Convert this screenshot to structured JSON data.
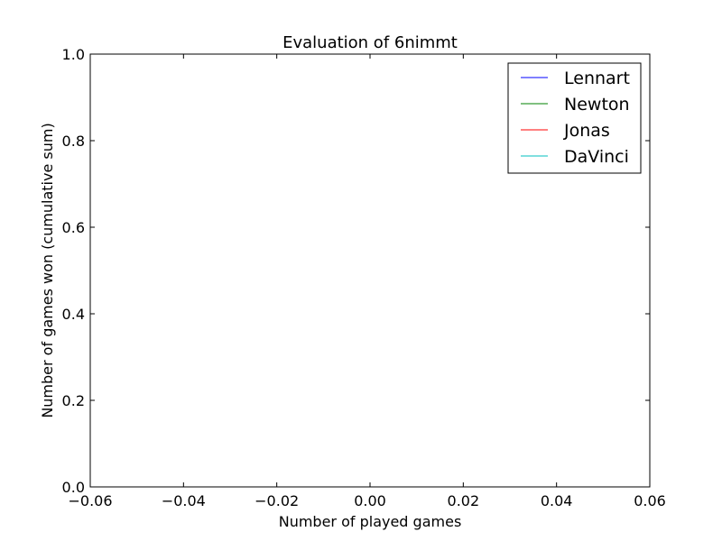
{
  "chart_data": {
    "type": "line",
    "title": "Evaluation of 6nimmt",
    "xlabel": "Number of played games",
    "ylabel": "Number of games won (cumulative sum)",
    "xlim": [
      -0.06,
      0.06
    ],
    "ylim": [
      0.0,
      1.0
    ],
    "x_ticks": [
      "−0.06",
      "−0.04",
      "−0.02",
      "0.00",
      "0.02",
      "0.04",
      "0.06"
    ],
    "y_ticks": [
      "0.0",
      "0.2",
      "0.4",
      "0.6",
      "0.8",
      "1.0"
    ],
    "grid": false,
    "legend_position": "top-right",
    "series": [
      {
        "name": "Lennart",
        "color": "#0000ff",
        "x": [],
        "y": []
      },
      {
        "name": "Newton",
        "color": "#008000",
        "x": [],
        "y": []
      },
      {
        "name": " Jonas",
        "color": "#ff0000",
        "x": [],
        "y": []
      },
      {
        "name": "DaVinci",
        "color": "#00bfbf",
        "x": [],
        "y": []
      }
    ]
  }
}
